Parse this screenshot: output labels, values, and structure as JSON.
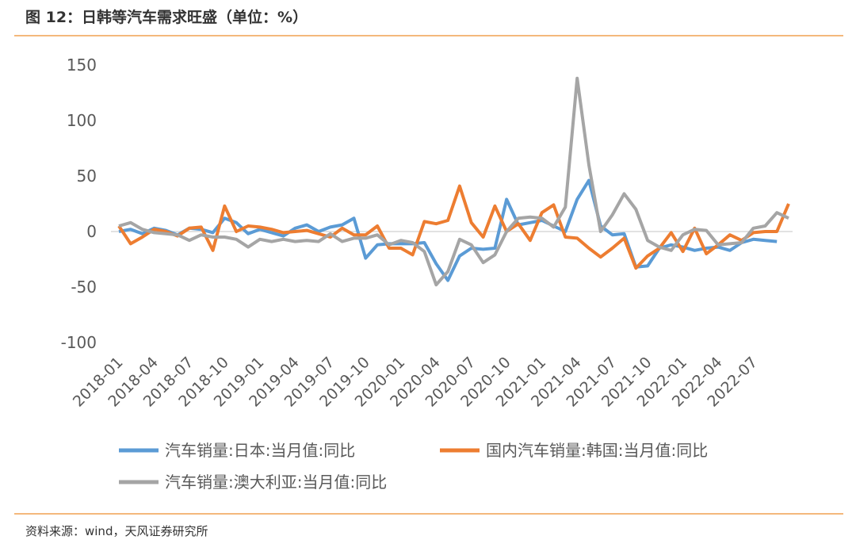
{
  "title": "图 12：日韩等汽车需求旺盛（单位：%）",
  "source": "资料来源：wind，天风证券研究所",
  "chart_data": {
    "type": "line",
    "categories": [
      "2018-01",
      null,
      null,
      "2018-04",
      null,
      null,
      "2018-07",
      null,
      null,
      "2018-10",
      null,
      null,
      "2019-01",
      null,
      null,
      "2019-04",
      null,
      null,
      "2019-07",
      null,
      null,
      "2019-10",
      null,
      null,
      "2020-01",
      null,
      null,
      "2020-04",
      null,
      null,
      "2020-07",
      null,
      null,
      "2020-10",
      null,
      null,
      "2021-01",
      null,
      null,
      "2021-04",
      null,
      null,
      "2021-07",
      null,
      null,
      "2021-10",
      null,
      null,
      "2022-01",
      null,
      null,
      "2022-04",
      null,
      null,
      "2022-07",
      null,
      null,
      null
    ],
    "series": [
      {
        "name": "汽车销量:日本:当月值:同比",
        "color": "#5b9bd5",
        "values": [
          0,
          2,
          -2,
          3,
          1,
          -3,
          3,
          2,
          -1,
          12,
          8,
          -2,
          2,
          -1,
          -4,
          3,
          6,
          0,
          4,
          6,
          12,
          -24,
          -12,
          -11,
          -11,
          -11,
          -10,
          -29,
          -44,
          -22,
          -15,
          -16,
          -15,
          29,
          6,
          8,
          10,
          5,
          0,
          29,
          46,
          5,
          -3,
          -2,
          -32,
          -31,
          -15,
          -12,
          -14,
          -17,
          -15,
          -14,
          -17,
          -10,
          -7,
          -8,
          -9,
          null
        ]
      },
      {
        "name": "国内汽车销量:韩国:当月值:同比",
        "color": "#ed7d31",
        "values": [
          5,
          -11,
          -5,
          2,
          0,
          -4,
          3,
          4,
          -17,
          23,
          0,
          5,
          4,
          2,
          -1,
          0,
          1,
          -2,
          -5,
          3,
          -3,
          -3,
          5,
          -15,
          -15,
          -21,
          9,
          7,
          10,
          41,
          8,
          -5,
          23,
          0,
          7,
          -8,
          17,
          24,
          -5,
          -6,
          -15,
          -23,
          -15,
          -6,
          -33,
          -22,
          -15,
          -1,
          -18,
          3,
          -20,
          -12,
          -3,
          -8,
          -1,
          0,
          0,
          25
        ]
      },
      {
        "name": "汽车销量:澳大利亚:当月值:同比",
        "color": "#a5a5a5",
        "values": [
          5,
          8,
          2,
          -1,
          -2,
          -3,
          -8,
          -3,
          -5,
          -5,
          -7,
          -14,
          -7,
          -9,
          -7,
          -9,
          -8,
          -9,
          -2,
          -9,
          -6,
          -6,
          -3,
          -12,
          -8,
          -10,
          -18,
          -48,
          -36,
          -7,
          -12,
          -28,
          -21,
          0,
          12,
          13,
          12,
          4,
          22,
          138,
          60,
          0,
          15,
          34,
          20,
          -8,
          -14,
          -17,
          -3,
          2,
          1,
          -12,
          -11,
          -10,
          3,
          5,
          17,
          12
        ]
      }
    ],
    "ylim": [
      -100,
      150
    ],
    "yticks": [
      -100,
      -50,
      0,
      50,
      100,
      150
    ],
    "grid": false
  }
}
